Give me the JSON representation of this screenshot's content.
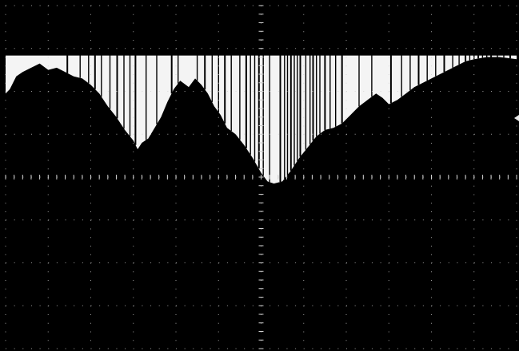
{
  "chart_data": {
    "type": "area",
    "title": "",
    "xlabel": "",
    "ylabel": "",
    "x_divisions": 12,
    "y_divisions": 8,
    "grid": true,
    "legend": "none",
    "trace_color": "#f4f4f4",
    "background_color": "#000000",
    "graticule_color": "#cfcfcf",
    "top_edge_division": 1.15,
    "series": [
      {
        "envelope": [
          [
            0.0,
            2.05
          ],
          [
            0.1,
            1.95
          ],
          [
            0.25,
            1.65
          ],
          [
            0.4,
            1.55
          ],
          [
            0.6,
            1.45
          ],
          [
            0.8,
            1.35
          ],
          [
            1.0,
            1.5
          ],
          [
            1.2,
            1.45
          ],
          [
            1.4,
            1.55
          ],
          [
            1.6,
            1.65
          ],
          [
            1.8,
            1.7
          ],
          [
            2.0,
            1.85
          ],
          [
            2.2,
            2.05
          ],
          [
            2.4,
            2.35
          ],
          [
            2.6,
            2.6
          ],
          [
            2.8,
            2.9
          ],
          [
            3.0,
            3.15
          ],
          [
            3.1,
            3.35
          ],
          [
            3.2,
            3.2
          ],
          [
            3.35,
            3.1
          ],
          [
            3.5,
            2.85
          ],
          [
            3.65,
            2.6
          ],
          [
            3.8,
            2.25
          ],
          [
            3.95,
            1.95
          ],
          [
            4.1,
            1.75
          ],
          [
            4.3,
            1.9
          ],
          [
            4.45,
            1.7
          ],
          [
            4.6,
            1.85
          ],
          [
            4.75,
            2.05
          ],
          [
            4.9,
            2.35
          ],
          [
            5.05,
            2.55
          ],
          [
            5.2,
            2.85
          ],
          [
            5.4,
            3.0
          ],
          [
            5.6,
            3.25
          ],
          [
            5.8,
            3.55
          ],
          [
            6.0,
            3.9
          ],
          [
            6.15,
            4.1
          ],
          [
            6.3,
            4.15
          ],
          [
            6.5,
            4.1
          ],
          [
            6.7,
            3.85
          ],
          [
            6.9,
            3.55
          ],
          [
            7.1,
            3.3
          ],
          [
            7.3,
            3.05
          ],
          [
            7.5,
            2.9
          ],
          [
            7.7,
            2.85
          ],
          [
            7.9,
            2.75
          ],
          [
            8.1,
            2.55
          ],
          [
            8.3,
            2.35
          ],
          [
            8.5,
            2.2
          ],
          [
            8.7,
            2.05
          ],
          [
            8.85,
            2.15
          ],
          [
            9.0,
            2.3
          ],
          [
            9.2,
            2.2
          ],
          [
            9.4,
            2.05
          ],
          [
            9.6,
            1.9
          ],
          [
            9.8,
            1.8
          ],
          [
            10.0,
            1.7
          ],
          [
            10.2,
            1.6
          ],
          [
            10.4,
            1.5
          ],
          [
            10.6,
            1.4
          ],
          [
            10.8,
            1.3
          ],
          [
            11.0,
            1.25
          ],
          [
            11.3,
            1.2
          ],
          [
            11.6,
            1.2
          ],
          [
            12.0,
            1.25
          ]
        ],
        "dropouts": [
          1.45,
          1.75,
          1.95,
          2.1,
          2.25,
          2.45,
          2.62,
          2.78,
          2.92,
          3.05,
          3.3,
          3.55,
          3.9,
          4.05,
          4.5,
          4.68,
          4.85,
          5.0,
          5.15,
          5.3,
          5.5,
          5.65,
          5.75,
          5.85,
          5.95,
          6.05,
          6.2,
          6.45,
          6.55,
          6.62,
          6.7,
          6.78,
          6.85,
          6.92,
          7.05,
          7.15,
          7.22,
          7.3,
          7.38,
          7.5,
          7.62,
          7.75,
          7.9,
          8.3,
          8.6,
          9.05,
          9.3,
          9.5,
          9.7,
          9.9,
          10.1,
          10.3,
          10.5,
          10.65,
          10.8,
          10.9,
          11.0,
          11.1,
          11.2,
          11.3,
          11.4,
          11.55,
          11.7,
          11.85
        ]
      }
    ]
  }
}
